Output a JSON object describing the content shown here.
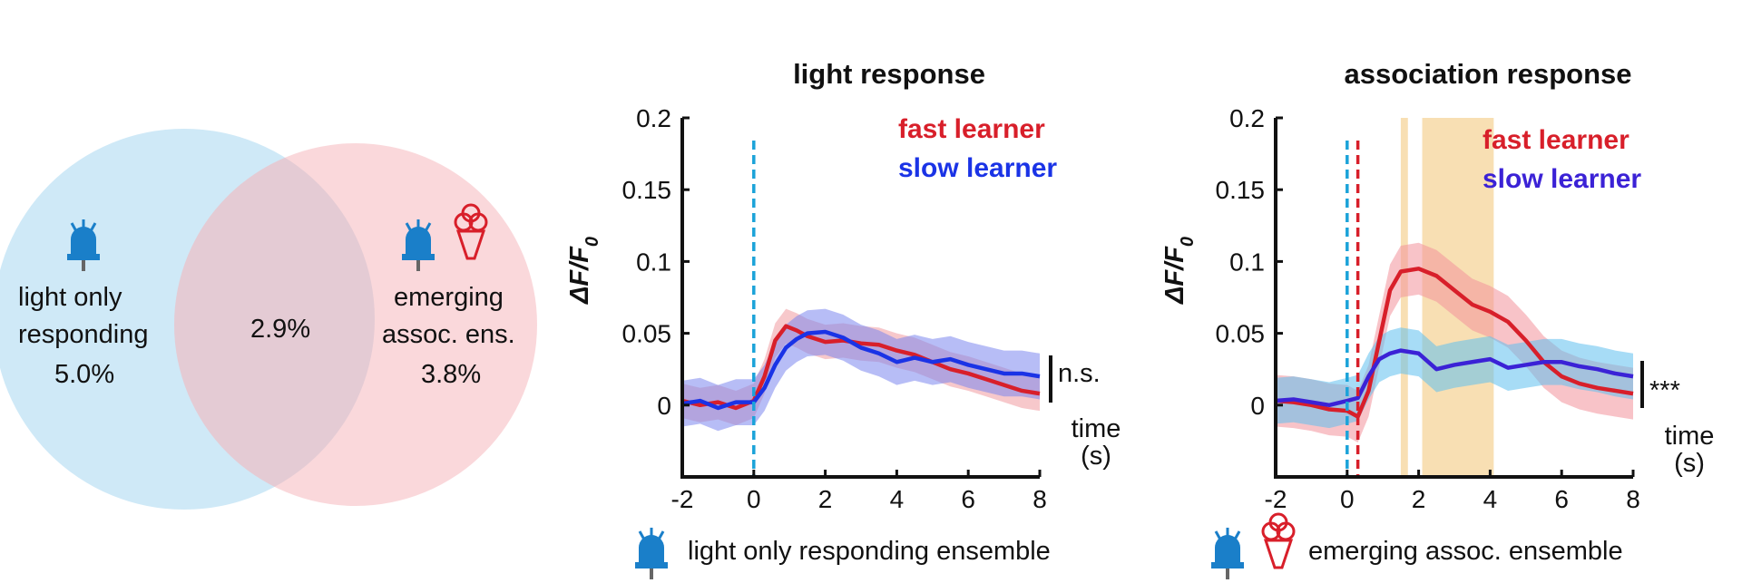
{
  "venn": {
    "left": {
      "line1": "light only",
      "line2": "responding",
      "value": "5.0%",
      "color": "#cfe9f7",
      "icon": "light-bulb-icon"
    },
    "overlap": {
      "value": "2.9%"
    },
    "right": {
      "line1": "emerging",
      "line2": "assoc. ens.",
      "value": "3.8%",
      "color": "#f8cdd1",
      "icons": [
        "light-bulb-icon",
        "reward-cup-icon"
      ]
    }
  },
  "colors": {
    "fast": "#d81f2a",
    "slow": "#1a33e6",
    "light_marker": "#1ba3d9",
    "assoc_marker": "#d81f2a",
    "window": "#f5d49a"
  },
  "chart_data": [
    {
      "type": "line",
      "title": "light response",
      "xlabel_line1": "time",
      "xlabel_line2": "(s)",
      "ylabel": "ΔF/F0",
      "xlim": [
        -2,
        8
      ],
      "ylim": [
        -0.05,
        0.2
      ],
      "xticks": [
        "-2",
        "0",
        "2",
        "4",
        "6",
        "8"
      ],
      "yticks": [
        "0",
        "0.05",
        "0.1",
        "0.15",
        "0.2"
      ],
      "stim_lines": [
        0
      ],
      "significance": "n.s.",
      "bottom_label": "light only responding ensemble",
      "bottom_icons": [
        "light-bulb-icon"
      ],
      "series": [
        {
          "name": "fast learner",
          "x": [
            -2,
            -1.5,
            -1,
            -0.5,
            0,
            0.3,
            0.6,
            0.9,
            1.2,
            1.5,
            2,
            2.5,
            3,
            3.5,
            4,
            4.5,
            5,
            5.5,
            6,
            6.5,
            7,
            7.5,
            8
          ],
          "y": [
            0.003,
            0.0,
            0.002,
            -0.002,
            0.003,
            0.02,
            0.045,
            0.055,
            0.052,
            0.048,
            0.044,
            0.045,
            0.043,
            0.042,
            0.038,
            0.035,
            0.03,
            0.025,
            0.022,
            0.018,
            0.014,
            0.01,
            0.008
          ],
          "err": 0.012
        },
        {
          "name": "slow learner",
          "x": [
            -2,
            -1.5,
            -1,
            -0.5,
            0,
            0.3,
            0.6,
            0.9,
            1.2,
            1.5,
            2,
            2.5,
            3,
            3.5,
            4,
            4.5,
            5,
            5.5,
            6,
            6.5,
            7,
            7.5,
            8
          ],
          "y": [
            0.001,
            0.003,
            -0.002,
            0.002,
            0.002,
            0.012,
            0.028,
            0.04,
            0.046,
            0.05,
            0.051,
            0.047,
            0.04,
            0.036,
            0.03,
            0.033,
            0.03,
            0.032,
            0.028,
            0.025,
            0.022,
            0.022,
            0.02
          ],
          "err": 0.016
        }
      ]
    },
    {
      "type": "line",
      "title": "association response",
      "xlabel_line1": "time",
      "xlabel_line2": "(s)",
      "ylabel": "ΔF/F0",
      "xlim": [
        -2,
        8
      ],
      "ylim": [
        -0.05,
        0.2
      ],
      "xticks": [
        "-2",
        "0",
        "2",
        "4",
        "6",
        "8"
      ],
      "yticks": [
        "0",
        "0.05",
        "0.1",
        "0.15",
        "0.2"
      ],
      "stim_lines": [
        0,
        0.3
      ],
      "windows": [
        [
          1.5,
          1.7
        ],
        [
          2.1,
          4.1
        ]
      ],
      "significance": "***",
      "bottom_label": "emerging assoc. ensemble",
      "bottom_icons": [
        "light-bulb-icon",
        "reward-cup-icon"
      ],
      "series": [
        {
          "name": "fast learner",
          "x": [
            -2,
            -1.5,
            -1,
            -0.5,
            0,
            0.3,
            0.6,
            0.9,
            1.2,
            1.5,
            2,
            2.5,
            3,
            3.5,
            4,
            4.5,
            5,
            5.5,
            6,
            6.5,
            7,
            7.5,
            8
          ],
          "y": [
            0.003,
            0.002,
            0.0,
            -0.003,
            -0.004,
            -0.008,
            0.01,
            0.045,
            0.08,
            0.093,
            0.095,
            0.09,
            0.08,
            0.07,
            0.065,
            0.058,
            0.045,
            0.03,
            0.02,
            0.015,
            0.012,
            0.01,
            0.008
          ],
          "err": 0.018
        },
        {
          "name": "slow learner",
          "x": [
            -2,
            -1.5,
            -1,
            -0.5,
            0,
            0.3,
            0.6,
            0.9,
            1.2,
            1.5,
            2,
            2.5,
            3,
            3.5,
            4,
            4.5,
            5,
            5.5,
            6,
            6.5,
            7,
            7.5,
            8
          ],
          "y": [
            0.003,
            0.004,
            0.002,
            0.0,
            0.003,
            0.005,
            0.02,
            0.032,
            0.036,
            0.038,
            0.036,
            0.025,
            0.028,
            0.03,
            0.032,
            0.026,
            0.028,
            0.03,
            0.03,
            0.027,
            0.025,
            0.022,
            0.02
          ],
          "err": 0.016
        }
      ]
    }
  ]
}
